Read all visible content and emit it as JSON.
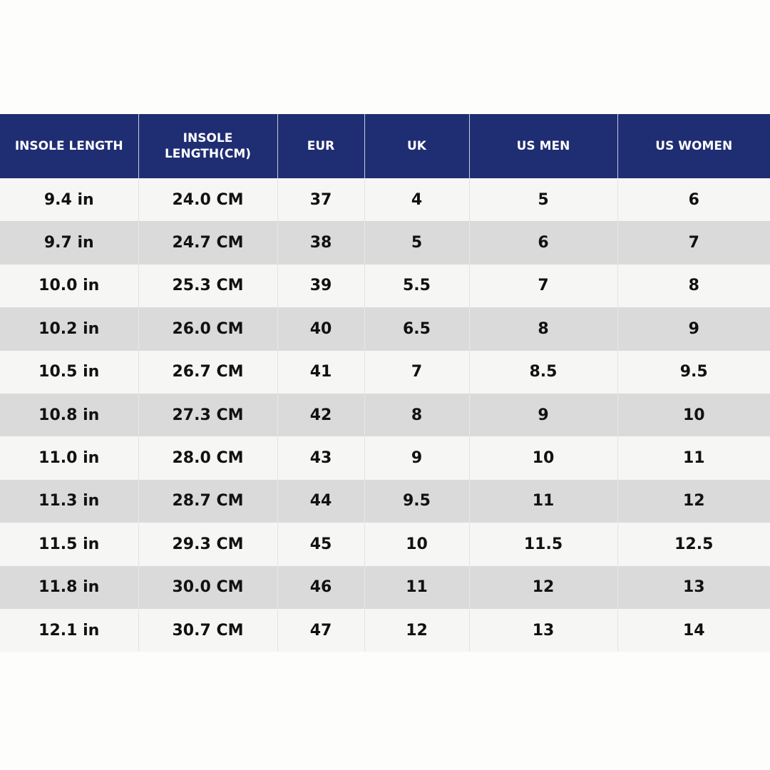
{
  "headers": [
    "INSOLE LENGTH",
    "INSOLE LENGTH(CM)",
    "EUR",
    "UK",
    "US MEN",
    "US WOMEN"
  ],
  "rows": [
    [
      "9.4 in",
      "24.0 CM",
      "37",
      "4",
      "5",
      "6"
    ],
    [
      "9.7 in",
      "24.7 CM",
      "38",
      "5",
      "6",
      "7"
    ],
    [
      "10.0 in",
      "25.3 CM",
      "39",
      "5.5",
      "7",
      "8"
    ],
    [
      "10.2 in",
      "26.0 CM",
      "40",
      "6.5",
      "8",
      "9"
    ],
    [
      "10.5 in",
      "26.7 CM",
      "41",
      "7",
      "8.5",
      "9.5"
    ],
    [
      "10.8 in",
      "27.3 CM",
      "42",
      "8",
      "9",
      "10"
    ],
    [
      "11.0 in",
      "28.0 CM",
      "43",
      "9",
      "10",
      "11"
    ],
    [
      "11.3 in",
      "28.7 CM",
      "44",
      "9.5",
      "11",
      "12"
    ],
    [
      "11.5 in",
      "29.3 CM",
      "45",
      "10",
      "11.5",
      "12.5"
    ],
    [
      "11.8 in",
      "30.0 CM",
      "46",
      "11",
      "12",
      "13"
    ],
    [
      "12.1 in",
      "30.7 CM",
      "47",
      "12",
      "13",
      "14"
    ]
  ],
  "colors": {
    "header_bg": "#1f2d72",
    "header_text": "#ffffff",
    "row_light": "#f6f6f4",
    "row_dark": "#dadada",
    "cell_text": "#111111"
  }
}
